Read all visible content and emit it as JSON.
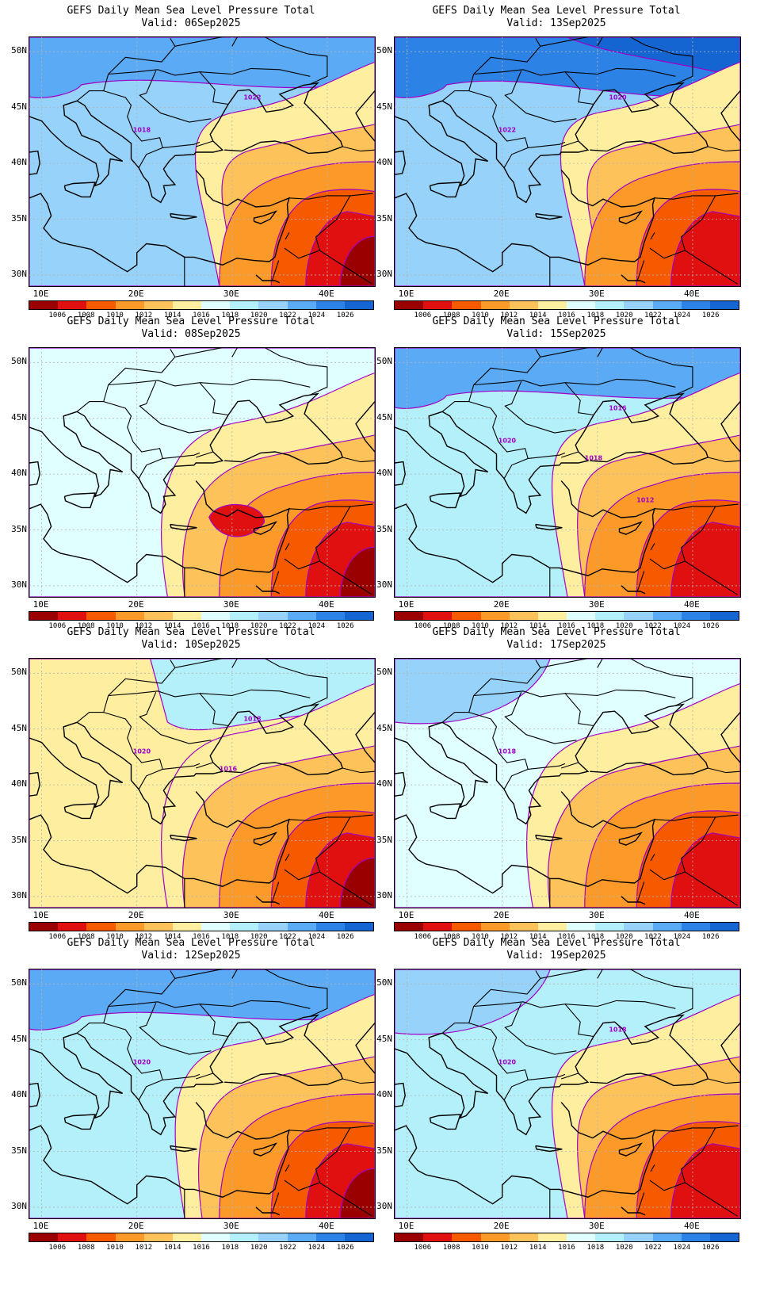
{
  "panels": [
    {
      "title": "GEFS Daily Mean Sea Level Pressure Total",
      "valid": "Valid: 06Sep2025",
      "iso": [
        "1018",
        "1022"
      ]
    },
    {
      "title": "GEFS Daily Mean Sea Level Pressure Total",
      "valid": "Valid: 13Sep2025",
      "iso": [
        "1022",
        "1020"
      ]
    },
    {
      "title": "GEFS Daily Mean Sea Level Pressure Total",
      "valid": "Valid: 08Sep2025",
      "iso": []
    },
    {
      "title": "GEFS Daily Mean Sea Level Pressure Total",
      "valid": "Valid: 15Sep2025",
      "iso": [
        "1020",
        "1016",
        "1018",
        "1012"
      ]
    },
    {
      "title": "GEFS Daily Mean Sea Level Pressure Total",
      "valid": "Valid: 10Sep2025",
      "iso": [
        "1020",
        "1018",
        "1016"
      ]
    },
    {
      "title": "GEFS Daily Mean Sea Level Pressure Total",
      "valid": "Valid: 17Sep2025",
      "iso": [
        "1018"
      ]
    },
    {
      "title": "GEFS Daily Mean Sea Level Pressure Total",
      "valid": "Valid: 12Sep2025",
      "iso": [
        "1020"
      ]
    },
    {
      "title": "GEFS Daily Mean Sea Level Pressure Total",
      "valid": "Valid: 19Sep2025",
      "iso": [
        "1020",
        "1018"
      ]
    }
  ],
  "lat_labels": [
    "50N",
    "45N",
    "40N",
    "35N",
    "30N"
  ],
  "lon_labels": [
    "10E",
    "20E",
    "30E",
    "40E"
  ],
  "colorbar": {
    "levels": [
      "1006",
      "1008",
      "1010",
      "1012",
      "1014",
      "1016",
      "1018",
      "1020",
      "1022",
      "1024",
      "1026"
    ],
    "colors": [
      "#9b0000",
      "#e01010",
      "#f55a00",
      "#fb9a29",
      "#fdc259",
      "#feeea0",
      "#e0ffff",
      "#b4f0fa",
      "#96d2fa",
      "#5aaaf5",
      "#2d82e6",
      "#1464d2"
    ]
  },
  "map_colors": {
    "contour": "#a000c8",
    "coast": "#000000",
    "grid": "#b4b4b4"
  }
}
